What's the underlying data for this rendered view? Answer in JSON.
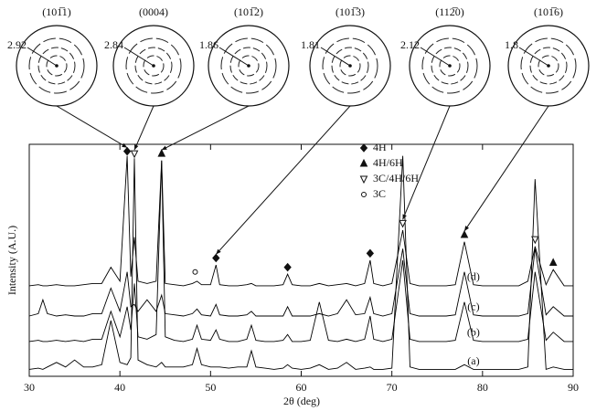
{
  "chart_data": {
    "type": "line",
    "x_label": "2θ (deg)",
    "y_label": "Intensity (A.U.)",
    "xlim": [
      30,
      90
    ],
    "xticks": [
      30,
      40,
      50,
      60,
      70,
      80,
      90
    ],
    "ylim": [
      0,
      100
    ],
    "x": [
      30,
      31,
      31.5,
      32,
      33,
      34,
      35,
      36,
      37,
      38,
      39,
      40,
      40.8,
      41.2,
      41.6,
      42,
      43,
      44,
      44.6,
      45,
      46,
      47,
      48,
      48.5,
      49,
      50,
      50.6,
      51,
      52,
      53,
      54,
      54.5,
      55,
      56,
      57,
      58,
      58.5,
      59,
      60,
      61,
      62,
      63,
      64,
      65,
      66,
      67,
      67.6,
      68,
      69,
      70,
      71.2,
      72,
      73,
      74,
      75,
      76,
      77,
      78,
      79,
      80,
      81,
      82,
      83,
      84,
      85,
      85.8,
      87,
      87.8,
      89,
      90
    ],
    "series": [
      {
        "name": "(a)",
        "color": "#000000",
        "values": [
          3,
          3.5,
          3,
          4,
          6,
          4,
          7,
          4,
          4,
          5,
          24,
          6,
          5,
          8,
          94,
          7,
          5,
          4,
          6,
          4,
          4,
          4,
          5,
          12,
          5,
          4,
          4,
          4,
          3.5,
          4,
          4,
          11,
          4,
          3.5,
          3,
          3.5,
          5,
          3.5,
          3,
          3.5,
          5,
          3,
          3.5,
          6,
          3,
          3.5,
          4,
          3,
          3,
          3.5,
          95,
          4,
          3,
          3,
          3,
          3,
          3,
          5,
          3,
          3,
          3,
          3,
          3,
          3,
          4,
          85,
          3,
          4,
          3,
          3
        ]
      },
      {
        "name": "(b)",
        "color": "#000000",
        "values": [
          15,
          15.5,
          15,
          15,
          15.5,
          15,
          15.5,
          15,
          16,
          16,
          28,
          17,
          30,
          20,
          40,
          17,
          16,
          18,
          93,
          17,
          15.5,
          15,
          16,
          22,
          16,
          15.5,
          20,
          16,
          15,
          15,
          16,
          22,
          15.5,
          15,
          15,
          15.5,
          18,
          15,
          15,
          15.5,
          32,
          15.5,
          15,
          16,
          15,
          16,
          26,
          16,
          15,
          16,
          50,
          16,
          15,
          15,
          15,
          15,
          15.5,
          32,
          15.5,
          15,
          15,
          15,
          15,
          15,
          16,
          45,
          15.5,
          19,
          15,
          15
        ]
      },
      {
        "name": "(c)",
        "color": "#000000",
        "values": [
          26,
          27,
          33,
          27,
          26,
          26.5,
          26,
          26,
          27,
          27,
          38,
          28,
          45,
          30,
          31,
          28,
          33,
          28,
          35,
          27,
          26.5,
          26,
          27,
          29,
          26.5,
          26,
          31,
          26.5,
          26,
          26,
          26.5,
          28,
          26,
          26,
          26,
          26,
          30,
          26,
          26,
          26,
          27,
          26,
          27,
          33,
          26.5,
          27,
          34,
          27,
          26,
          27,
          55,
          27,
          26,
          26,
          26,
          26,
          26.5,
          45,
          26.5,
          26,
          26,
          26,
          26,
          26,
          27,
          55,
          26.5,
          30,
          26,
          26
        ]
      },
      {
        "name": "(d)",
        "color": "#000000",
        "values": [
          39,
          39.5,
          39,
          39,
          39.5,
          39,
          39,
          39.5,
          40,
          40,
          47,
          41,
          95,
          43,
          60,
          41,
          40,
          41,
          93,
          40,
          39.5,
          39,
          40,
          41,
          39.5,
          39.5,
          48,
          39.5,
          39,
          39,
          39.5,
          40,
          39,
          39,
          39,
          39.5,
          44,
          39.5,
          39,
          39,
          40,
          39,
          39.5,
          40,
          39,
          40,
          50,
          40,
          39,
          40,
          63,
          40,
          39,
          39,
          39,
          39,
          39.5,
          58,
          39.5,
          39,
          39,
          39,
          39,
          39,
          41,
          56,
          39.5,
          46,
          39,
          39
        ]
      }
    ],
    "phases": [
      {
        "label": "4H",
        "symbol": "diamond"
      },
      {
        "label": "4H/6H",
        "symbol": "triangle"
      },
      {
        "label": "3C/4H/6H",
        "symbol": "triangle-down"
      },
      {
        "label": "3C",
        "symbol": "circle"
      }
    ],
    "markers": [
      {
        "x": 40.8,
        "y": 97,
        "phase": 0
      },
      {
        "x": 41.6,
        "y": 96,
        "phase": 2
      },
      {
        "x": 44.6,
        "y": 96,
        "phase": 1
      },
      {
        "x": 48.3,
        "y": 45,
        "phase": 3
      },
      {
        "x": 50.6,
        "y": 51,
        "phase": 0
      },
      {
        "x": 58.5,
        "y": 47,
        "phase": 0
      },
      {
        "x": 67.6,
        "y": 53,
        "phase": 0
      },
      {
        "x": 71.2,
        "y": 66,
        "phase": 2
      },
      {
        "x": 78,
        "y": 61,
        "phase": 1
      },
      {
        "x": 85.8,
        "y": 59,
        "phase": 2
      },
      {
        "x": 87.8,
        "y": 49,
        "phase": 1
      }
    ],
    "pole_figures": [
      {
        "plane": "(101̅1)",
        "max": 2.92,
        "peak": 0
      },
      {
        "plane": "(0004)",
        "max": 2.84,
        "peak": 1
      },
      {
        "plane": "(101̅2)",
        "max": 1.86,
        "peak": 2
      },
      {
        "plane": "(101̅3)",
        "max": 1.81,
        "peak": 4
      },
      {
        "plane": "(112̅0)",
        "max": 2.12,
        "peak": 7
      },
      {
        "plane": "(101̅6)",
        "max": 1.8,
        "peak": 8
      }
    ]
  }
}
